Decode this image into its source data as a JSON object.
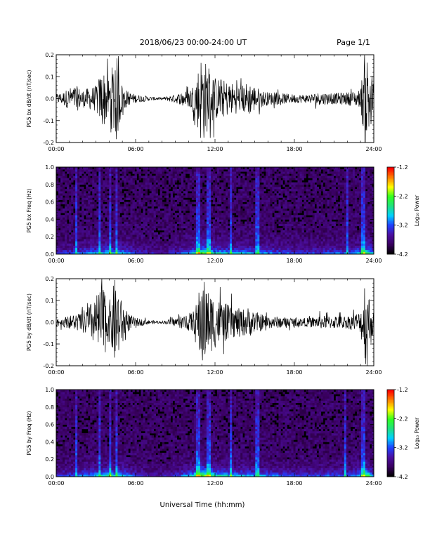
{
  "header": {
    "date_range": "2018/06/23  00:00-24:00 UT",
    "page": "Page 1/1"
  },
  "xaxis": {
    "label": "Universal Time (hh:mm)",
    "ticks": [
      "00:00",
      "06:00",
      "12:00",
      "18:00",
      "24:00"
    ]
  },
  "colorbar": {
    "label": "Log₁₀ Power",
    "ticks": [
      "-1.2",
      "-2.2",
      "-3.2",
      "-4.2"
    ],
    "range": [
      -4.2,
      -1.2
    ],
    "colors": [
      "#000000",
      "#3a0060",
      "#4b0fa0",
      "#2040ff",
      "#00d0ff",
      "#20e080",
      "#30ff20",
      "#ffff00",
      "#ff8000",
      "#ff0000"
    ]
  },
  "chart_data": [
    {
      "type": "line",
      "id": "p1",
      "ylabel": "PG5 bx dB/dt (nT/sec)",
      "xlim": [
        0,
        24
      ],
      "ylim": [
        -0.2,
        0.2
      ],
      "yticks": [
        "0.2",
        "0.1",
        "0.0",
        "-0.1",
        "-0.2"
      ],
      "envelope_x": [
        0,
        0.5,
        1.0,
        1.5,
        2.0,
        2.5,
        3.0,
        3.5,
        4.0,
        4.5,
        5.0,
        5.5,
        6.0,
        7.0,
        8.0,
        9.0,
        10.0,
        10.5,
        11.0,
        11.5,
        12.0,
        12.5,
        13.0,
        13.5,
        14.0,
        14.5,
        15.0,
        15.5,
        16.0,
        17.0,
        18.0,
        19.0,
        20.0,
        21.0,
        22.0,
        23.0,
        23.3,
        23.7,
        24.0
      ],
      "envelope_amp": [
        0.02,
        0.03,
        0.05,
        0.06,
        0.04,
        0.05,
        0.06,
        0.14,
        0.09,
        0.22,
        0.06,
        0.03,
        0.02,
        0.01,
        0.005,
        0.02,
        0.04,
        0.08,
        0.22,
        0.14,
        0.1,
        0.09,
        0.08,
        0.07,
        0.06,
        0.08,
        0.06,
        0.04,
        0.03,
        0.025,
        0.02,
        0.02,
        0.03,
        0.025,
        0.03,
        0.04,
        0.22,
        0.2,
        0.05
      ]
    },
    {
      "type": "heatmap",
      "id": "p2",
      "ylabel": "PG5 bx Freq (Hz)",
      "xlim": [
        0,
        24
      ],
      "ylim": [
        0,
        1.0
      ],
      "yticks": [
        "1.0",
        "0.8",
        "0.6",
        "0.4",
        "0.2",
        "0.0"
      ],
      "zlim": [
        -4.2,
        -1.2
      ],
      "activity_x": [
        0,
        1,
        2,
        3,
        4,
        5,
        6,
        7,
        8,
        9,
        10,
        10.5,
        11,
        11.5,
        12,
        13,
        14,
        15,
        16,
        17,
        18,
        19,
        20,
        21,
        22,
        23,
        23.5,
        24
      ],
      "activity": [
        0.2,
        0.3,
        0.4,
        0.45,
        0.55,
        0.5,
        0.3,
        0.2,
        0.15,
        0.25,
        0.4,
        0.6,
        0.9,
        0.75,
        0.6,
        0.5,
        0.5,
        0.45,
        0.4,
        0.35,
        0.3,
        0.3,
        0.3,
        0.35,
        0.35,
        0.5,
        0.8,
        0.4
      ],
      "vertical_lines": [
        1.5,
        3.3,
        4.1,
        4.6,
        10.7,
        11.5,
        13.2,
        15.2,
        22.0,
        23.2
      ]
    },
    {
      "type": "line",
      "id": "p3",
      "ylabel": "PG5 by dB/dt (nT/sec)",
      "xlim": [
        0,
        24
      ],
      "ylim": [
        -0.2,
        0.2
      ],
      "yticks": [
        "0.2",
        "0.1",
        "0.0",
        "-0.1",
        "-0.2"
      ],
      "envelope_x": [
        0,
        0.5,
        1.0,
        1.5,
        2.0,
        2.5,
        3.0,
        3.5,
        4.0,
        4.5,
        5.0,
        5.5,
        6.0,
        7.0,
        8.0,
        9.0,
        10.0,
        10.5,
        11.0,
        11.5,
        12.0,
        12.5,
        13.0,
        13.5,
        14.0,
        14.5,
        15.0,
        15.5,
        16.0,
        17.0,
        18.0,
        19.0,
        20.0,
        21.0,
        22.0,
        23.0,
        23.3,
        23.7,
        24.0
      ],
      "envelope_amp": [
        0.02,
        0.02,
        0.03,
        0.04,
        0.05,
        0.08,
        0.12,
        0.18,
        0.09,
        0.22,
        0.08,
        0.04,
        0.02,
        0.01,
        0.005,
        0.02,
        0.04,
        0.06,
        0.22,
        0.15,
        0.12,
        0.1,
        0.08,
        0.07,
        0.06,
        0.07,
        0.05,
        0.04,
        0.03,
        0.025,
        0.02,
        0.02,
        0.03,
        0.03,
        0.03,
        0.05,
        0.22,
        0.12,
        0.05
      ]
    },
    {
      "type": "heatmap",
      "id": "p4",
      "ylabel": "PG5 by Freq (Hz)",
      "xlim": [
        0,
        24
      ],
      "ylim": [
        0,
        1.0
      ],
      "yticks": [
        "1.0",
        "0.8",
        "0.6",
        "0.4",
        "0.2",
        "0.0"
      ],
      "zlim": [
        -4.2,
        -1.2
      ],
      "activity_x": [
        0,
        1,
        2,
        3,
        4,
        5,
        6,
        7,
        8,
        9,
        10,
        10.5,
        11,
        11.5,
        12,
        13,
        14,
        15,
        16,
        17,
        18,
        19,
        20,
        21,
        22,
        23,
        23.5,
        24
      ],
      "activity": [
        0.25,
        0.3,
        0.4,
        0.5,
        0.6,
        0.5,
        0.3,
        0.2,
        0.15,
        0.25,
        0.45,
        0.7,
        0.95,
        0.8,
        0.65,
        0.55,
        0.5,
        0.45,
        0.4,
        0.35,
        0.3,
        0.3,
        0.3,
        0.35,
        0.35,
        0.5,
        0.85,
        0.4
      ],
      "vertical_lines": [
        1.5,
        3.3,
        4.1,
        4.6,
        10.7,
        11.5,
        13.2,
        15.2,
        21.8,
        23.2
      ]
    }
  ]
}
